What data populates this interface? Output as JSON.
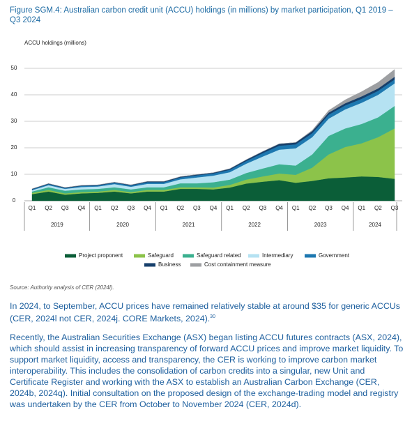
{
  "chart_data": {
    "type": "stacked_area",
    "title": "Figure SGM.4: Australian carbon credit unit (ACCU) holdings (in millions) by market participation, Q1 2019 – Q3 2024",
    "ylabel": "ACCU holdings (millions)",
    "categories": [
      "Q1",
      "Q2",
      "Q3",
      "Q4",
      "Q1",
      "Q2",
      "Q3",
      "Q4",
      "Q1",
      "Q2",
      "Q3",
      "Q4",
      "Q1",
      "Q2",
      "Q3",
      "Q4",
      "Q1",
      "Q2",
      "Q3",
      "Q4",
      "Q1",
      "Q2",
      "Q3"
    ],
    "x_groups": [
      "2019",
      "2020",
      "2021",
      "2022",
      "2023",
      "2024"
    ],
    "ylim": [
      0,
      50
    ],
    "yticks": [
      0,
      10,
      20,
      30,
      40,
      50
    ],
    "grid": true,
    "series": [
      {
        "name": "Project proponent",
        "color": "#0b5e38",
        "values": [
          2.5,
          3.5,
          2.3,
          2.8,
          3,
          3.5,
          2.8,
          3.5,
          3.5,
          4.5,
          4.5,
          4.3,
          5,
          6.5,
          7.2,
          7.8,
          6.8,
          7.5,
          8.5,
          8.8,
          9.2,
          9,
          8.3
        ]
      },
      {
        "name": "Safeguard",
        "color": "#8cc34a",
        "values": [
          0.5,
          0.6,
          0.5,
          0.5,
          0.5,
          0.6,
          0.5,
          0.6,
          0.6,
          0.6,
          0.6,
          0.7,
          1,
          1.5,
          2,
          2.5,
          3,
          5,
          9,
          11.5,
          12.5,
          15,
          19
        ]
      },
      {
        "name": "Safeguard related",
        "color": "#3bb08f",
        "values": [
          0.5,
          1,
          1,
          1,
          1,
          1,
          1,
          1,
          1,
          1.5,
          1.5,
          2,
          2,
          2.5,
          3,
          3.5,
          3.5,
          5,
          7,
          7,
          7.3,
          7.5,
          8.5
        ]
      },
      {
        "name": "Intermediary",
        "color": "#b5e2f2",
        "values": [
          0.5,
          0.8,
          0.7,
          0.9,
          0.9,
          1.2,
          1,
          1.3,
          1.3,
          1.5,
          2.2,
          2.5,
          2.8,
          3.5,
          4.5,
          5.5,
          6.5,
          6.5,
          6.5,
          7.2,
          8,
          8.5,
          8.5
        ]
      },
      {
        "name": "Government",
        "color": "#1d78b0",
        "values": [
          0.3,
          0.4,
          0.3,
          0.4,
          0.4,
          0.5,
          0.5,
          0.6,
          0.6,
          0.7,
          0.8,
          0.8,
          0.9,
          1,
          1.3,
          1.5,
          1.5,
          1.5,
          1.5,
          1.5,
          1.5,
          1.5,
          1.5
        ]
      },
      {
        "name": "Business",
        "color": "#163f6b",
        "values": [
          0.2,
          0.2,
          0.2,
          0.2,
          0.2,
          0.2,
          0.2,
          0.3,
          0.3,
          0.3,
          0.3,
          0.3,
          0.4,
          0.5,
          0.6,
          0.7,
          0.7,
          0.8,
          0.8,
          0.8,
          0.9,
          0.9,
          1
        ]
      },
      {
        "name": "Cost containment measure",
        "color": "#9d9fa2",
        "values": [
          0,
          0,
          0,
          0,
          0,
          0,
          0,
          0,
          0,
          0,
          0,
          0,
          0,
          0,
          0,
          0,
          0,
          0.3,
          0.8,
          1.3,
          1.8,
          2.3,
          2.8
        ]
      }
    ]
  },
  "source": "Source: Authority analysis of CER (2024l).",
  "paragraphs": [
    {
      "text": "In 2024, to September, ACCU prices have remained relatively stable at around $35 for generic ACCUs (CER, 2024l not CER, 2024j. CORE Markets, 2024).",
      "footnote": "30"
    },
    {
      "text": "Recently, the Australian Securities Exchange (ASX) began listing ACCU futures contracts (ASX, 2024), which should assist in increasing transparency of forward ACCU prices and improve market liquidity. To support market liquidity, access and transparency, the CER is working to improve carbon market interoperability. This includes the consolidation of carbon credits into a singular, new Unit and Certificate Register and working with the ASX to establish an Australian Carbon Exchange (CER, 2024b, 2024q). Initial consultation on the proposed design of the exchange-trading model and registry was undertaken by the CER from October to November 2024 (CER, 2024d)."
    }
  ]
}
